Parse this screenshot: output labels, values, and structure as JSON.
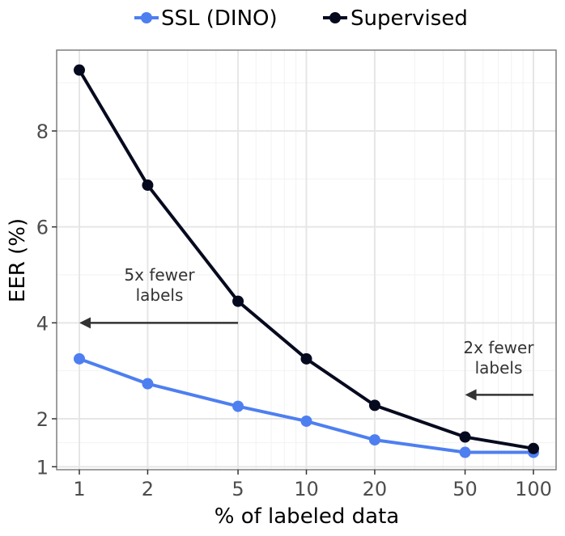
{
  "colors": {
    "ssl": "#4e7ff0",
    "supervised": "#060a1f",
    "grid_major": "#e6e6e6",
    "grid_minor": "#f2f2f2",
    "panel_border": "#7f7f7f",
    "arrow": "#333333"
  },
  "chart_data": {
    "type": "line",
    "xscale": "log",
    "x": [
      1,
      2,
      5,
      10,
      20,
      50,
      100
    ],
    "xlabel": "% of labeled data",
    "ylabel": "EER (%)",
    "x_ticks": [
      "1",
      "2",
      "5",
      "10",
      "20",
      "50",
      "100"
    ],
    "y_ticks": [
      "1",
      "2",
      "4",
      "6",
      "8"
    ],
    "ylim": [
      0.9,
      9.6
    ],
    "legend_position": "top",
    "series": [
      {
        "name": "SSL (DINO)",
        "values": [
          3.25,
          2.73,
          2.26,
          1.95,
          1.56,
          1.3,
          1.3
        ]
      },
      {
        "name": "Supervised",
        "values": [
          9.27,
          6.87,
          4.45,
          3.25,
          2.28,
          1.62,
          1.38
        ]
      }
    ],
    "annotations": [
      {
        "lines": [
          "5x fewer",
          "labels"
        ],
        "arrow_from_x": 5,
        "arrow_to_x": 1,
        "arrow_y": 4.0
      },
      {
        "lines": [
          "2x fewer",
          "labels"
        ],
        "arrow_from_x": 100,
        "arrow_to_x": 50,
        "arrow_y": 2.5
      }
    ]
  }
}
